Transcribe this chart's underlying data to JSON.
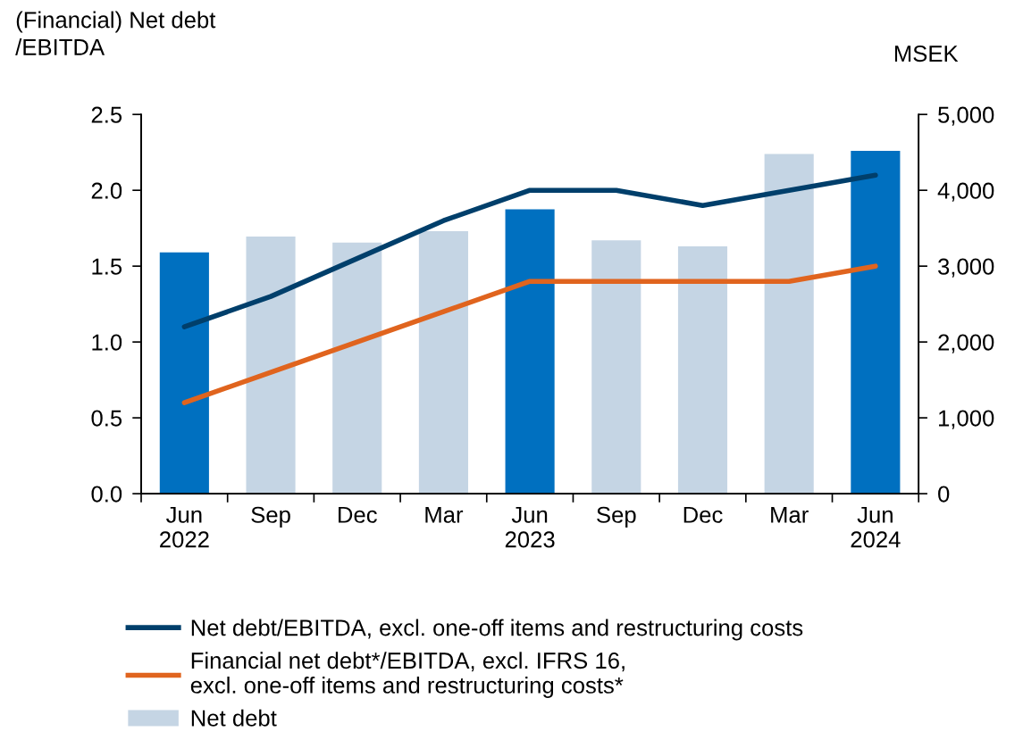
{
  "chart_data": {
    "type": "bar",
    "categories": [
      "Jun\n2022",
      "Sep",
      "Dec",
      "Mar",
      "Jun\n2023",
      "Sep",
      "Dec",
      "Mar",
      "Jun\n2024"
    ],
    "ylabel": "(Financial) Net debt\n/EBITDA",
    "y2label": "MSEK",
    "ylim": [
      0,
      2.5
    ],
    "yticks": [
      {
        "value": 0,
        "label": "0.0"
      },
      0.5,
      {
        "value": 1,
        "label": "1.0"
      },
      1.5,
      {
        "value": 2,
        "label": "2.0"
      },
      2.5
    ],
    "y2lim": [
      0,
      5000
    ],
    "y2ticks": [
      0,
      {
        "value": 1000,
        "label": "1,000"
      },
      {
        "value": 2000,
        "label": "2,000"
      },
      {
        "value": 3000,
        "label": "3,000"
      },
      {
        "value": 4000,
        "label": "4,000"
      },
      {
        "value": 5000,
        "label": "5,000"
      }
    ],
    "series": [
      {
        "name": "Net debt/EBITDA, excl. one-off items and restructuring costs",
        "type": "line",
        "color": "#003f6b",
        "values": [
          1.1,
          1.3,
          1.55,
          1.8,
          2.0,
          2.0,
          1.9,
          2.0,
          2.1
        ]
      },
      {
        "name": "Financial net debt*/EBITDA, excl. IFRS 16,\nexcl. one-off items and restructuring costs*",
        "type": "line",
        "color": "#e0641e",
        "values": [
          0.6,
          0.8,
          1.0,
          1.2,
          1.4,
          1.4,
          1.4,
          1.4,
          1.5
        ]
      },
      {
        "name": "Net debt",
        "axis": "y2",
        "color": "#c5d5e4",
        "colors": [
          "#0070c0",
          "#c5d5e4",
          "#c5d5e4",
          "#c5d5e4",
          "#0070c0",
          "#c5d5e4",
          "#c5d5e4",
          "#c5d5e4",
          "#0070c0"
        ],
        "values": [
          3180,
          3390,
          3310,
          3460,
          3750,
          3340,
          3260,
          4480,
          4520
        ]
      }
    ],
    "legend": "bottom",
    "grid": false,
    "marker": "none",
    "line_style": "solid"
  }
}
